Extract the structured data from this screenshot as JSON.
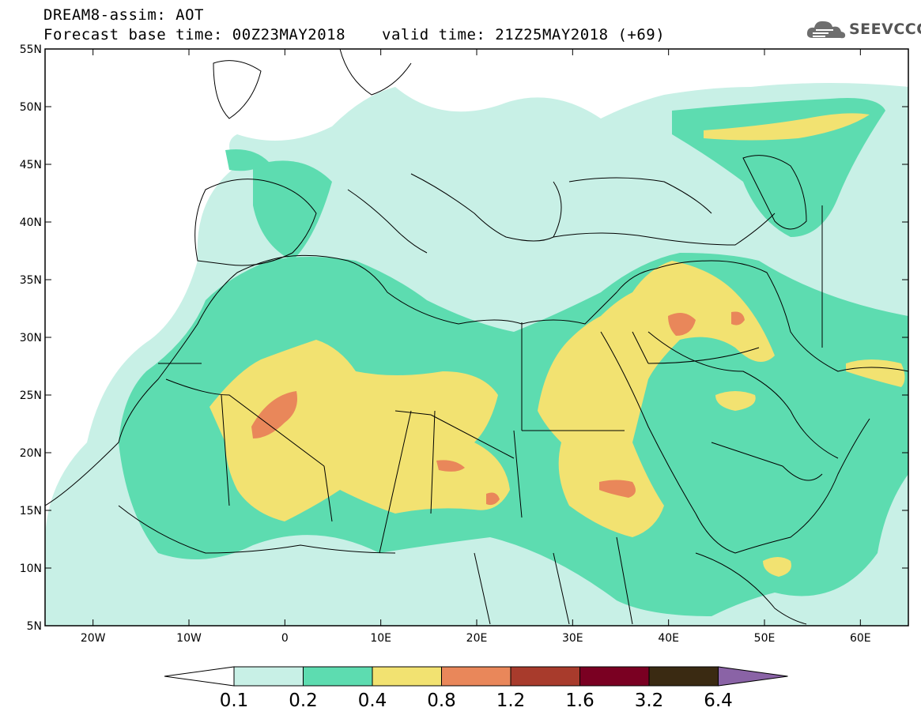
{
  "header": {
    "title": "DREAM8-assim: AOT",
    "base_time": "Forecast base time: 00Z23MAY2018",
    "valid_time": "valid time: 21Z25MAY2018 (+69)"
  },
  "logo": {
    "text": "SEEVCCC",
    "icon": "cloud-icon"
  },
  "chart_data": {
    "type": "heatmap",
    "variable": "AOT",
    "model": "DREAM8-assim",
    "x_ticks": [
      "20W",
      "10W",
      "0",
      "10E",
      "20E",
      "30E",
      "40E",
      "50E",
      "60E"
    ],
    "x_tick_values": [
      -20,
      -10,
      0,
      10,
      20,
      30,
      40,
      50,
      60
    ],
    "y_ticks": [
      "5N",
      "10N",
      "15N",
      "20N",
      "25N",
      "30N",
      "35N",
      "40N",
      "45N",
      "50N",
      "55N"
    ],
    "y_tick_values": [
      5,
      10,
      15,
      20,
      25,
      30,
      35,
      40,
      45,
      50,
      55
    ],
    "xlim": [
      -25,
      65
    ],
    "ylim": [
      5,
      55
    ],
    "colorbar": {
      "levels": [
        "0.1",
        "0.2",
        "0.4",
        "0.8",
        "1.2",
        "1.6",
        "3.2",
        "6.4"
      ],
      "colors": [
        "#c8f0e6",
        "#5ddcb0",
        "#f2e271",
        "#e9875a",
        "#a83b2c",
        "#7a0022",
        "#3a2a12",
        "#8a63a6"
      ],
      "extend": "both"
    },
    "regions": [
      {
        "level": 1,
        "lon": 0,
        "lat": 20,
        "rx": 45,
        "ry": 15
      },
      {
        "level": 2,
        "lon": 2,
        "lat": 21,
        "rx": 18,
        "ry": 7
      },
      {
        "level": 2,
        "lon": 33,
        "lat": 19,
        "rx": 6,
        "ry": 5
      },
      {
        "level": 2,
        "lon": 43,
        "lat": 31,
        "rx": 6,
        "ry": 4
      },
      {
        "level": 3,
        "lon": -1,
        "lat": 23,
        "rx": 3,
        "ry": 2
      },
      {
        "level": 3,
        "lon": 35,
        "lat": 17,
        "rx": 2.5,
        "ry": 1
      },
      {
        "level": 3,
        "lon": 42,
        "lat": 31.5,
        "rx": 2,
        "ry": 1.2
      },
      {
        "level": 3,
        "lon": 19,
        "lat": 19,
        "rx": 1.6,
        "ry": 0.8
      },
      {
        "level": 3,
        "lon": 22,
        "lat": 16.5,
        "rx": 0.8,
        "ry": 0.8
      }
    ]
  },
  "colorbar_labels": [
    "0.1",
    "0.2",
    "0.4",
    "0.8",
    "1.2",
    "1.6",
    "3.2",
    "6.4"
  ]
}
